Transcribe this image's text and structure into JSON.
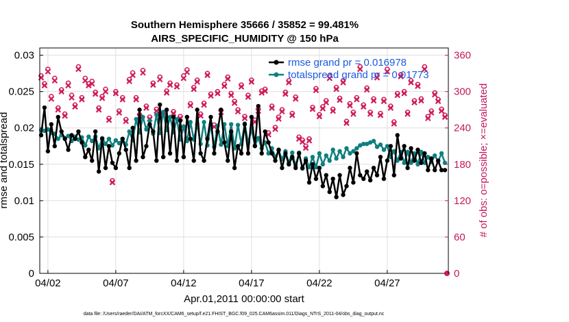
{
  "chart_data": {
    "type": "line",
    "title": "Southern Hemisphere 35666 / 35852 = 99.481%",
    "subtitle": "AIRS_SPECIFIC_HUMIDITY @ 150 hPa",
    "xlabel": "Apr.01,2011 00:00:00 start",
    "ylabel": "rmse and totalspread",
    "y2label": "# of obs: o=possible; ×=evaluated",
    "footer": "data file: /Users/raeder/DAI/ATM_forcXX/CAM6_setup/f.e21.FHIST_BGC.f09_025.CAM6assim.011/Diags_NTrS_2011-04/obs_diag_output.nc",
    "xlim": [
      1.4,
      31.5
    ],
    "ylim": [
      0,
      0.031
    ],
    "y2lim": [
      0,
      372
    ],
    "xticks": [
      2,
      7,
      12,
      17,
      22,
      27
    ],
    "xticklabels": [
      "04/02",
      "04/07",
      "04/12",
      "04/17",
      "04/22",
      "04/27"
    ],
    "yticks": [
      0,
      0.005,
      0.01,
      0.015,
      0.02,
      0.025,
      0.03
    ],
    "yticklabels": [
      "0",
      "0.005",
      "0.01",
      "0.015",
      "0.02",
      "0.025",
      "0.03"
    ],
    "y2ticks": [
      0,
      60,
      120,
      180,
      240,
      300,
      360
    ],
    "y2ticklabels": [
      "0",
      "60",
      "120",
      "180",
      "240",
      "300",
      "360"
    ],
    "grid": true,
    "legend_position": "top-right",
    "colors": {
      "rmse": "#000000",
      "spread": "#0f7f7f",
      "obs": "#d01c5c",
      "legend_text": "#1a5ae0"
    },
    "x": [
      1.5,
      1.75,
      2,
      2.25,
      2.5,
      2.75,
      3,
      3.25,
      3.5,
      3.75,
      4,
      4.25,
      4.5,
      4.75,
      5,
      5.25,
      5.5,
      5.75,
      6,
      6.25,
      6.5,
      6.75,
      7,
      7.25,
      7.5,
      7.75,
      8,
      8.25,
      8.5,
      8.75,
      9,
      9.25,
      9.5,
      9.75,
      10,
      10.25,
      10.5,
      10.75,
      11,
      11.25,
      11.5,
      11.75,
      12,
      12.25,
      12.5,
      12.75,
      13,
      13.25,
      13.5,
      13.75,
      14,
      14.25,
      14.5,
      14.75,
      15,
      15.25,
      15.5,
      15.75,
      16,
      16.25,
      16.5,
      16.75,
      17,
      17.25,
      17.5,
      17.75,
      18,
      18.25,
      18.5,
      18.75,
      19,
      19.25,
      19.5,
      19.75,
      20,
      20.25,
      20.5,
      20.75,
      21,
      21.25,
      21.5,
      21.75,
      22,
      22.25,
      22.5,
      22.75,
      23,
      23.25,
      23.5,
      23.75,
      24,
      24.25,
      24.5,
      24.75,
      25,
      25.25,
      25.5,
      25.75,
      26,
      26.25,
      26.5,
      26.75,
      27,
      27.25,
      27.5,
      27.75,
      28,
      28.25,
      28.5,
      28.75,
      29,
      29.25,
      29.5,
      29.75,
      30,
      30.25,
      30.5,
      30.75,
      31,
      31.25
    ],
    "series": [
      {
        "name": "rmse grand pr = 0.016978",
        "axis": "left",
        "marker": "circle",
        "values": [
          0.019,
          0.0228,
          0.0168,
          0.0205,
          0.0175,
          0.0215,
          0.0195,
          0.0185,
          0.017,
          0.019,
          0.0185,
          0.0195,
          0.018,
          0.016,
          0.017,
          0.0155,
          0.0195,
          0.014,
          0.0185,
          0.0145,
          0.0175,
          0.0152,
          0.0145,
          0.0165,
          0.0185,
          0.017,
          0.0145,
          0.02,
          0.0155,
          0.0225,
          0.016,
          0.0175,
          0.0205,
          0.0195,
          0.0155,
          0.0232,
          0.016,
          0.0225,
          0.0165,
          0.0215,
          0.0155,
          0.021,
          0.016,
          0.0215,
          0.0185,
          0.0155,
          0.0225,
          0.0165,
          0.0155,
          0.0185,
          0.0215,
          0.0165,
          0.0195,
          0.0225,
          0.018,
          0.0155,
          0.0195,
          0.0145,
          0.0175,
          0.0165,
          0.0205,
          0.0165,
          0.0215,
          0.0175,
          0.023,
          0.0165,
          0.0195,
          0.018,
          0.0165,
          0.0155,
          0.017,
          0.0145,
          0.0165,
          0.015,
          0.016,
          0.0145,
          0.0165,
          0.0145,
          0.0155,
          0.0125,
          0.015,
          0.013,
          0.0145,
          0.012,
          0.0135,
          0.0112,
          0.013,
          0.0105,
          0.0135,
          0.0108,
          0.012,
          0.0145,
          0.0125,
          0.0165,
          0.0135,
          0.013,
          0.014,
          0.0128,
          0.0145,
          0.0135,
          0.016,
          0.013,
          0.0155,
          0.0175,
          0.0135,
          0.019,
          0.0158,
          0.0175,
          0.0145,
          0.0172,
          0.0155,
          0.017,
          0.0152,
          0.0165,
          0.0142,
          0.0158,
          0.0142,
          0.0155,
          0.0142,
          0.0142
        ]
      },
      {
        "name": "totalspread grand pr = 0.01773",
        "axis": "left",
        "marker": "circle",
        "values": [
          0.0197,
          0.0196,
          0.0198,
          0.0193,
          0.0192,
          0.0185,
          0.019,
          0.0186,
          0.0189,
          0.0182,
          0.0188,
          0.0184,
          0.0187,
          0.0176,
          0.0188,
          0.0182,
          0.0188,
          0.0172,
          0.0186,
          0.0178,
          0.0185,
          0.0176,
          0.0183,
          0.0179,
          0.0185,
          0.0177,
          0.0195,
          0.0183,
          0.0212,
          0.0194,
          0.0215,
          0.0198,
          0.021,
          0.0192,
          0.0218,
          0.0193,
          0.0222,
          0.0197,
          0.0215,
          0.0194,
          0.0212,
          0.0184,
          0.0202,
          0.0182,
          0.0208,
          0.0184,
          0.0205,
          0.0178,
          0.0208,
          0.0176,
          0.0205,
          0.0174,
          0.0203,
          0.0177,
          0.0205,
          0.0175,
          0.0205,
          0.0172,
          0.0204,
          0.0178,
          0.0206,
          0.018,
          0.0198,
          0.0176,
          0.0186,
          0.0172,
          0.018,
          0.0165,
          0.0172,
          0.016,
          0.0169,
          0.0157,
          0.0168,
          0.0152,
          0.0166,
          0.0148,
          0.0166,
          0.0144,
          0.0158,
          0.0146,
          0.016,
          0.0146,
          0.0165,
          0.015,
          0.0162,
          0.0155,
          0.017,
          0.0158,
          0.0168,
          0.016,
          0.0172,
          0.0165,
          0.0168,
          0.0172,
          0.0176,
          0.0178,
          0.0178,
          0.018,
          0.0182,
          0.0174,
          0.0177,
          0.017,
          0.0175,
          0.016,
          0.0168,
          0.0155,
          0.0167,
          0.0152,
          0.0167,
          0.0152,
          0.0165,
          0.015,
          0.0167,
          0.0152,
          0.016,
          0.0153,
          0.0162,
          0.0154,
          0.0165,
          0.0152
        ]
      },
      {
        "name": "possible",
        "axis": "right",
        "marker": "o",
        "values": [
          326,
          313,
          337,
          292,
          322,
          273,
          303,
          263,
          314,
          294,
          278,
          341,
          290,
          322,
          313,
          317,
          299,
          273,
          292,
          304,
          256,
          153,
          300,
          268,
          290,
          254,
          320,
          331,
          290,
          262,
          335,
          276,
          258,
          314,
          271,
          324,
          264,
          301,
          314,
          267,
          311,
          259,
          326,
          336,
          280,
          307,
          319,
          263,
          281,
          330,
          296,
          245,
          300,
          269,
          312,
          324,
          297,
          284,
          270,
          311,
          259,
          294,
          319,
          253,
          271,
          301,
          304,
          232,
          276,
          241,
          258,
          270,
          299,
          318,
          264,
          291,
          225,
          220,
          210,
          222,
          274,
          305,
          262,
          275,
          285,
          326,
          271,
          307,
          289,
          318,
          251,
          280,
          266,
          290,
          341,
          278,
          306,
          266,
          288,
          327,
          264,
          287,
          337,
          276,
          250,
          297,
          328,
          300,
          266,
          318,
          285,
          312,
          288,
          341,
          259,
          268,
          298,
          287,
          271,
          261
        ]
      },
      {
        "name": "evaluated",
        "axis": "right",
        "marker": "x",
        "values": [
          323,
          310,
          333,
          288,
          318,
          270,
          300,
          260,
          310,
          290,
          275,
          337,
          287,
          318,
          310,
          313,
          296,
          270,
          289,
          300,
          253,
          150,
          297,
          265,
          287,
          251,
          317,
          327,
          287,
          259,
          331,
          273,
          255,
          311,
          268,
          320,
          261,
          298,
          311,
          264,
          308,
          256,
          322,
          332,
          277,
          304,
          316,
          260,
          278,
          327,
          293,
          242,
          297,
          266,
          309,
          321,
          294,
          281,
          267,
          308,
          256,
          291,
          316,
          250,
          268,
          298,
          301,
          229,
          273,
          238,
          255,
          267,
          296,
          315,
          261,
          288,
          222,
          217,
          207,
          219,
          271,
          302,
          259,
          272,
          282,
          322,
          268,
          304,
          286,
          315,
          248,
          277,
          263,
          287,
          337,
          275,
          303,
          263,
          285,
          323,
          261,
          284,
          333,
          273,
          247,
          294,
          325,
          297,
          263,
          315,
          282,
          309,
          285,
          337,
          256,
          265,
          295,
          284,
          268,
          258
        ]
      }
    ],
    "extra_points": [
      {
        "x": 31.4,
        "y2": 0,
        "series": "possible"
      }
    ]
  }
}
